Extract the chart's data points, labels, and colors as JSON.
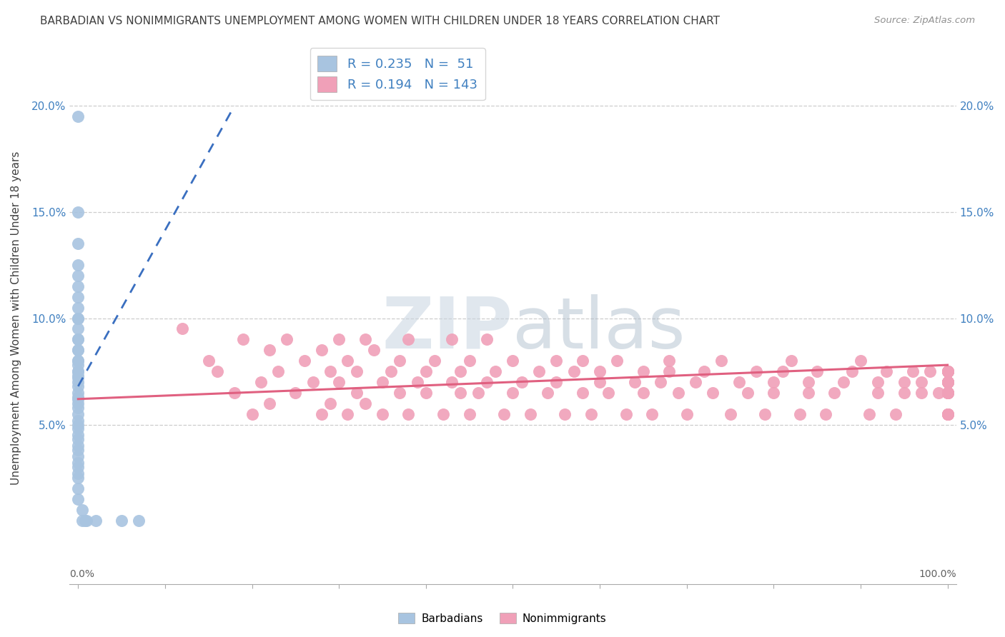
{
  "title": "BARBADIAN VS NONIMMIGRANTS UNEMPLOYMENT AMONG WOMEN WITH CHILDREN UNDER 18 YEARS CORRELATION CHART",
  "source": "Source: ZipAtlas.com",
  "ylabel": "Unemployment Among Women with Children Under 18 years",
  "barbadian_R": 0.235,
  "barbadian_N": 51,
  "nonimmigrant_R": 0.194,
  "nonimmigrant_N": 143,
  "barbadian_color": "#a8c4e0",
  "nonimmigrant_color": "#f0a0b8",
  "barbadian_line_color": "#3a6fc0",
  "nonimmigrant_line_color": "#e06080",
  "background_color": "#ffffff",
  "grid_color": "#c8c8c8",
  "title_color": "#404040",
  "source_color": "#909090",
  "legend_text_color": "#4080c0",
  "axis_label_color": "#4080c0",
  "xlim": [
    -0.01,
    1.01
  ],
  "ylim": [
    -0.025,
    0.225
  ],
  "ytick_vals": [
    0.0,
    0.05,
    0.1,
    0.15,
    0.2
  ],
  "ytick_labels_left": [
    "",
    "5.0%",
    "10.0%",
    "15.0%",
    "20.0%"
  ],
  "ytick_labels_right": [
    "",
    "5.0%",
    "10.0%",
    "15.0%",
    "20.0%"
  ],
  "barbadian_x": [
    0.0,
    0.0,
    0.0,
    0.0,
    0.0,
    0.0,
    0.0,
    0.0,
    0.0,
    0.0,
    0.0,
    0.0,
    0.0,
    0.0,
    0.0,
    0.0,
    0.0,
    0.0,
    0.0,
    0.0,
    0.0,
    0.0,
    0.0,
    0.0,
    0.0,
    0.0,
    0.0,
    0.0,
    0.0,
    0.0,
    0.0,
    0.0,
    0.0,
    0.0,
    0.0,
    0.0,
    0.0,
    0.0,
    0.0,
    0.0,
    0.0,
    0.0,
    0.0,
    0.0,
    0.005,
    0.005,
    0.008,
    0.01,
    0.02,
    0.05,
    0.07
  ],
  "barbadian_y": [
    0.195,
    0.15,
    0.135,
    0.125,
    0.12,
    0.115,
    0.11,
    0.105,
    0.1,
    0.1,
    0.095,
    0.09,
    0.09,
    0.085,
    0.085,
    0.08,
    0.08,
    0.078,
    0.075,
    0.075,
    0.073,
    0.072,
    0.07,
    0.068,
    0.065,
    0.063,
    0.062,
    0.06,
    0.058,
    0.055,
    0.052,
    0.05,
    0.048,
    0.045,
    0.043,
    0.04,
    0.038,
    0.035,
    0.032,
    0.03,
    0.027,
    0.025,
    0.02,
    0.015,
    0.01,
    0.005,
    0.005,
    0.005,
    0.005,
    0.005,
    0.005
  ],
  "nonimmigrant_x": [
    0.12,
    0.15,
    0.16,
    0.18,
    0.19,
    0.2,
    0.21,
    0.22,
    0.22,
    0.23,
    0.24,
    0.25,
    0.26,
    0.27,
    0.28,
    0.28,
    0.29,
    0.29,
    0.3,
    0.3,
    0.31,
    0.31,
    0.32,
    0.32,
    0.33,
    0.33,
    0.34,
    0.35,
    0.35,
    0.36,
    0.37,
    0.37,
    0.38,
    0.38,
    0.39,
    0.4,
    0.4,
    0.41,
    0.42,
    0.43,
    0.43,
    0.44,
    0.44,
    0.45,
    0.45,
    0.46,
    0.47,
    0.47,
    0.48,
    0.49,
    0.5,
    0.5,
    0.51,
    0.52,
    0.53,
    0.54,
    0.55,
    0.55,
    0.56,
    0.57,
    0.58,
    0.58,
    0.59,
    0.6,
    0.6,
    0.61,
    0.62,
    0.63,
    0.64,
    0.65,
    0.65,
    0.66,
    0.67,
    0.68,
    0.68,
    0.69,
    0.7,
    0.71,
    0.72,
    0.73,
    0.74,
    0.75,
    0.76,
    0.77,
    0.78,
    0.79,
    0.8,
    0.8,
    0.81,
    0.82,
    0.83,
    0.84,
    0.84,
    0.85,
    0.86,
    0.87,
    0.88,
    0.89,
    0.9,
    0.91,
    0.92,
    0.92,
    0.93,
    0.94,
    0.95,
    0.95,
    0.96,
    0.97,
    0.97,
    0.98,
    0.99,
    1.0,
    1.0,
    1.0,
    1.0,
    1.0,
    1.0,
    1.0,
    1.0,
    1.0,
    1.0,
    1.0,
    1.0,
    1.0,
    1.0,
    1.0,
    1.0,
    1.0,
    1.0,
    1.0,
    1.0,
    1.0,
    1.0,
    1.0,
    1.0,
    1.0,
    1.0,
    1.0,
    1.0
  ],
  "nonimmigrant_y": [
    0.095,
    0.08,
    0.075,
    0.065,
    0.09,
    0.055,
    0.07,
    0.085,
    0.06,
    0.075,
    0.09,
    0.065,
    0.08,
    0.07,
    0.055,
    0.085,
    0.06,
    0.075,
    0.09,
    0.07,
    0.055,
    0.08,
    0.065,
    0.075,
    0.09,
    0.06,
    0.085,
    0.055,
    0.07,
    0.075,
    0.065,
    0.08,
    0.055,
    0.09,
    0.07,
    0.075,
    0.065,
    0.08,
    0.055,
    0.07,
    0.09,
    0.065,
    0.075,
    0.055,
    0.08,
    0.065,
    0.07,
    0.09,
    0.075,
    0.055,
    0.065,
    0.08,
    0.07,
    0.055,
    0.075,
    0.065,
    0.08,
    0.07,
    0.055,
    0.075,
    0.065,
    0.08,
    0.055,
    0.07,
    0.075,
    0.065,
    0.08,
    0.055,
    0.07,
    0.075,
    0.065,
    0.055,
    0.07,
    0.075,
    0.08,
    0.065,
    0.055,
    0.07,
    0.075,
    0.065,
    0.08,
    0.055,
    0.07,
    0.065,
    0.075,
    0.055,
    0.07,
    0.065,
    0.075,
    0.08,
    0.055,
    0.065,
    0.07,
    0.075,
    0.055,
    0.065,
    0.07,
    0.075,
    0.08,
    0.055,
    0.065,
    0.07,
    0.075,
    0.055,
    0.065,
    0.07,
    0.075,
    0.065,
    0.07,
    0.075,
    0.065,
    0.07,
    0.075,
    0.065,
    0.055,
    0.07,
    0.075,
    0.065,
    0.07,
    0.055,
    0.075,
    0.065,
    0.07,
    0.055,
    0.075,
    0.065,
    0.07,
    0.055,
    0.075,
    0.065,
    0.07,
    0.075,
    0.065,
    0.07,
    0.055,
    0.075,
    0.065,
    0.07,
    0.075
  ],
  "barb_trend_x0": 0.0,
  "barb_trend_y0": 0.068,
  "barb_trend_x1": 0.18,
  "barb_trend_y1": 0.2,
  "nonimm_trend_x0": 0.0,
  "nonimm_trend_y0": 0.062,
  "nonimm_trend_x1": 1.0,
  "nonimm_trend_y1": 0.078
}
